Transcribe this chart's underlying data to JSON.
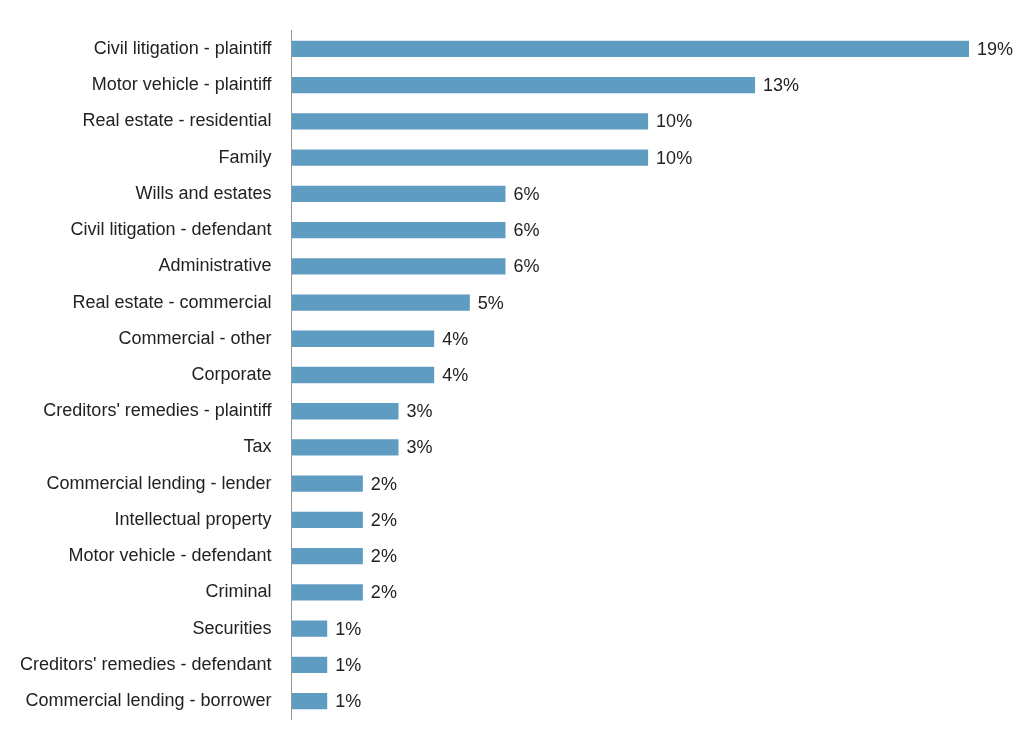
{
  "chart_data": {
    "type": "bar",
    "orientation": "horizontal",
    "categories": [
      "Civil litigation - plaintiff",
      "Motor vehicle - plaintiff",
      "Real estate - residential",
      "Family",
      "Wills and estates",
      "Civil litigation - defendant",
      "Administrative",
      "Real estate - commercial",
      "Commercial - other",
      "Corporate",
      "Creditors' remedies - plaintiff",
      "Tax",
      "Commercial lending - lender",
      "Intellectual property",
      "Motor vehicle - defendant",
      "Criminal",
      "Securities",
      "Creditors' remedies - defendant",
      "Commercial lending - borrower"
    ],
    "values": [
      19,
      13,
      10,
      10,
      6,
      6,
      6,
      5,
      4,
      4,
      3,
      3,
      2,
      2,
      2,
      2,
      1,
      1,
      1
    ],
    "value_labels": [
      "19%",
      "13%",
      "10%",
      "10%",
      "6%",
      "6%",
      "6%",
      "5%",
      "4%",
      "4%",
      "3%",
      "3%",
      "2%",
      "2%",
      "2%",
      "2%",
      "1%",
      "1%",
      "1%"
    ],
    "color": "#5f9cc2"
  }
}
